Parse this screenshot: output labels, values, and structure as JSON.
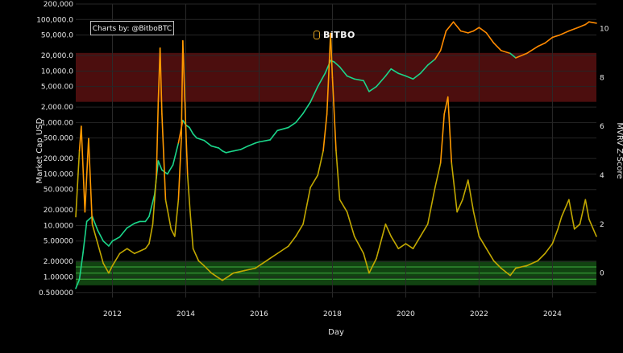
{
  "chart_data": {
    "type": "line",
    "title": "",
    "credit": "Charts by: @BitboBTC",
    "brand": "BiTBO",
    "xlabel": "Day",
    "ylabel_left": "Market Cap USD",
    "ylabel_right": "MVRV Z-Score",
    "x_ticks": [
      "2012",
      "2014",
      "2016",
      "2018",
      "2020",
      "2022",
      "2024"
    ],
    "xlim": [
      2011.0,
      2025.2
    ],
    "y_left_scale": "log",
    "y_left_ticks": [
      "0.500000",
      "1.00000",
      "2.00000",
      "5.00000",
      "10.0000",
      "20.0000",
      "50.0000",
      "100.000",
      "200.000",
      "500.000",
      "1,000.00",
      "2,000.00",
      "5,000.00",
      "10,000.0",
      "20,000.0",
      "50,000.0",
      "100,000.0",
      "200,000"
    ],
    "y_left_tick_values": [
      0.5,
      1,
      2,
      5,
      10,
      20,
      50,
      100,
      200,
      500,
      1000,
      2000,
      5000,
      10000,
      20000,
      50000,
      100000,
      200000
    ],
    "ylim_left": [
      0.4,
      200000
    ],
    "y_right_ticks": [
      "0",
      "2",
      "4",
      "6",
      "8",
      "10"
    ],
    "y_right_tick_values": [
      0,
      2,
      4,
      6,
      8,
      10
    ],
    "ylim_right": [
      -1,
      11
    ],
    "zones": [
      {
        "label": "",
        "color": "#8b1a1a",
        "y_right": [
          7,
          9
        ]
      },
      {
        "label": "",
        "color": "#1f7a1f",
        "y_right": [
          -0.5,
          0.5
        ]
      }
    ],
    "grid": true,
    "series": [
      {
        "axis": "left",
        "color_low": "#1bd68a",
        "color_high": "#ff8a00",
        "x": [
          2011.0,
          2011.1,
          2011.2,
          2011.3,
          2011.45,
          2011.6,
          2011.75,
          2011.9,
          2012.0,
          2012.2,
          2012.4,
          2012.6,
          2012.75,
          2012.9,
          2013.0,
          2013.15,
          2013.25,
          2013.35,
          2013.5,
          2013.65,
          2013.8,
          2013.92,
          2014.0,
          2014.1,
          2014.2,
          2014.3,
          2014.5,
          2014.7,
          2014.9,
          2015.0,
          2015.1,
          2015.3,
          2015.5,
          2015.7,
          2015.9,
          2016.0,
          2016.3,
          2016.5,
          2016.8,
          2017.0,
          2017.2,
          2017.4,
          2017.6,
          2017.8,
          2017.95,
          2018.05,
          2018.2,
          2018.4,
          2018.6,
          2018.85,
          2019.0,
          2019.2,
          2019.45,
          2019.6,
          2019.8,
          2020.0,
          2020.2,
          2020.4,
          2020.6,
          2020.8,
          2020.95,
          2021.1,
          2021.3,
          2021.5,
          2021.7,
          2021.85,
          2022.0,
          2022.2,
          2022.4,
          2022.6,
          2022.85,
          2023.0,
          2023.3,
          2023.6,
          2023.8,
          2024.0,
          2024.2,
          2024.45,
          2024.7,
          2024.9,
          2025.0,
          2025.2
        ],
        "values": [
          0.6,
          0.9,
          3,
          12,
          15,
          8,
          5,
          4,
          5,
          6,
          9,
          11,
          12,
          12,
          15,
          40,
          180,
          120,
          100,
          150,
          400,
          1100,
          900,
          800,
          600,
          500,
          450,
          350,
          320,
          280,
          260,
          280,
          300,
          350,
          400,
          420,
          460,
          700,
          800,
          1000,
          1500,
          2500,
          5000,
          9000,
          16000,
          15000,
          12000,
          8000,
          7000,
          6500,
          4000,
          5000,
          8000,
          11000,
          9000,
          8000,
          7000,
          9000,
          13000,
          17000,
          25000,
          60000,
          90000,
          60000,
          55000,
          60000,
          70000,
          55000,
          35000,
          25000,
          22000,
          18000,
          22000,
          30000,
          35000,
          45000,
          50000,
          60000,
          70000,
          80000,
          90000,
          85000
        ]
      },
      {
        "axis": "right",
        "color_low": "#c2a800",
        "color_high": "#ff9900",
        "x": [
          2011.0,
          2011.1,
          2011.15,
          2011.25,
          2011.35,
          2011.45,
          2011.6,
          2011.75,
          2011.9,
          2012.0,
          2012.2,
          2012.4,
          2012.6,
          2012.75,
          2012.9,
          2013.0,
          2013.1,
          2013.2,
          2013.25,
          2013.3,
          2013.35,
          2013.45,
          2013.6,
          2013.7,
          2013.8,
          2013.88,
          2013.92,
          2014.0,
          2014.05,
          2014.12,
          2014.2,
          2014.35,
          2014.5,
          2014.7,
          2014.9,
          2015.0,
          2015.3,
          2015.6,
          2015.9,
          2016.1,
          2016.3,
          2016.5,
          2016.8,
          2017.0,
          2017.2,
          2017.4,
          2017.6,
          2017.75,
          2017.85,
          2017.95,
          2018.0,
          2018.1,
          2018.2,
          2018.4,
          2018.6,
          2018.85,
          2019.0,
          2019.2,
          2019.45,
          2019.6,
          2019.8,
          2020.0,
          2020.2,
          2020.4,
          2020.6,
          2020.8,
          2020.95,
          2021.05,
          2021.15,
          2021.25,
          2021.4,
          2021.55,
          2021.7,
          2021.85,
          2022.0,
          2022.2,
          2022.4,
          2022.6,
          2022.85,
          2023.0,
          2023.3,
          2023.6,
          2023.8,
          2024.0,
          2024.15,
          2024.25,
          2024.45,
          2024.6,
          2024.75,
          2024.9,
          2025.0,
          2025.2
        ],
        "values": [
          2.3,
          5,
          6.0,
          2.5,
          5.5,
          2.0,
          1.2,
          0.4,
          0.0,
          0.3,
          0.8,
          1.0,
          0.8,
          0.9,
          1.0,
          1.2,
          2.0,
          4.0,
          7.0,
          9.2,
          6.5,
          3.0,
          1.8,
          1.5,
          3.0,
          5.5,
          9.5,
          6.0,
          4.0,
          2.5,
          1.0,
          0.5,
          0.3,
          0.0,
          -0.2,
          -0.3,
          0.0,
          0.1,
          0.2,
          0.4,
          0.6,
          0.8,
          1.1,
          1.5,
          2.0,
          3.5,
          4.0,
          5.0,
          6.5,
          9.8,
          8.0,
          5.0,
          3.0,
          2.5,
          1.5,
          0.8,
          0.0,
          0.6,
          2.0,
          1.5,
          1.0,
          1.2,
          1.0,
          1.5,
          2.0,
          3.5,
          4.5,
          6.5,
          7.2,
          4.5,
          2.5,
          3.0,
          3.8,
          2.5,
          1.5,
          1.0,
          0.5,
          0.2,
          -0.1,
          0.2,
          0.3,
          0.5,
          0.8,
          1.2,
          1.8,
          2.3,
          3.0,
          1.8,
          2.0,
          3.0,
          2.2,
          1.5
        ]
      }
    ]
  }
}
